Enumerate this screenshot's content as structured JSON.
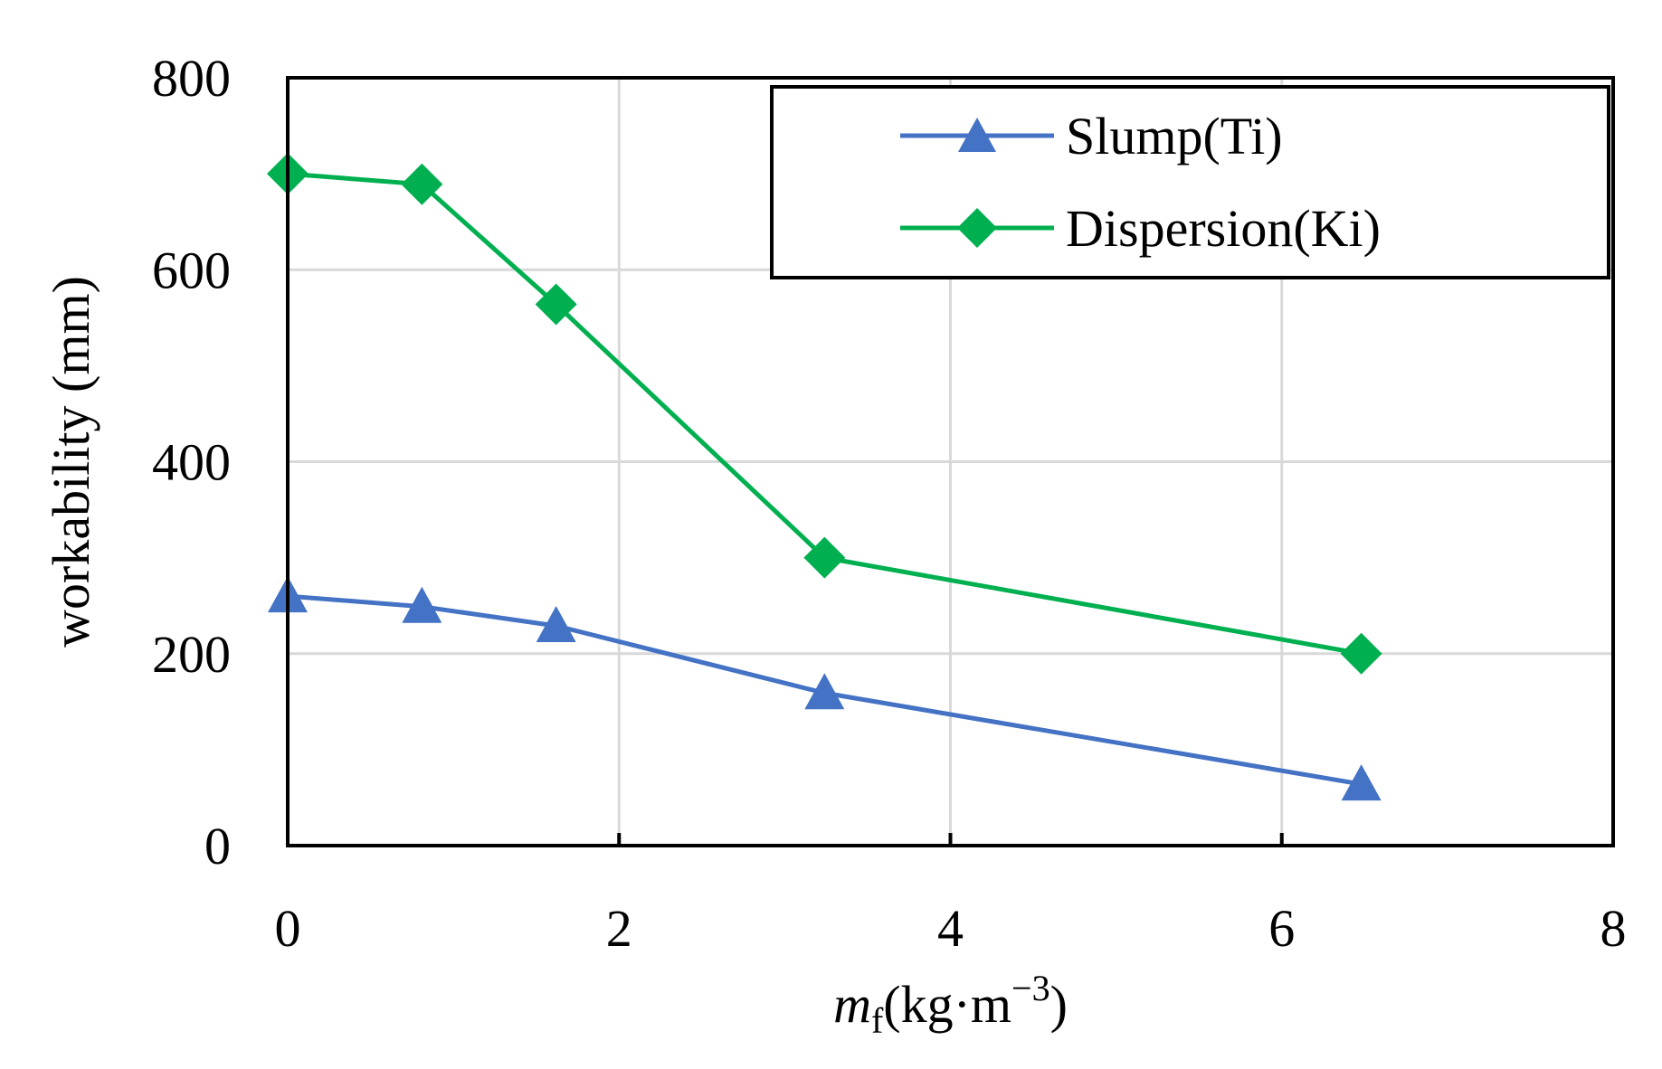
{
  "chart_data": {
    "type": "line",
    "title": "",
    "xlabel": {
      "main": "m",
      "sub": "f",
      "units": "(kg·m",
      "sup": "−3",
      "close": ")"
    },
    "ylabel": "workability (mm)",
    "xlim": [
      0,
      8
    ],
    "ylim": [
      0,
      800
    ],
    "xticks": [
      "0",
      "2",
      "4",
      "6",
      "8"
    ],
    "yticks": [
      "0",
      "200",
      "400",
      "600",
      "800"
    ],
    "grid": true,
    "legend_position": "top-right",
    "series": [
      {
        "name": "Slump(Ti)",
        "color": "#4472C4",
        "marker": "triangle",
        "x": [
          0,
          0.81,
          1.62,
          3.24,
          6.48
        ],
        "y": [
          260,
          249,
          229,
          159,
          64
        ]
      },
      {
        "name": "Dispersion(Ki)",
        "color": "#00B050",
        "marker": "diamond",
        "x": [
          0,
          0.81,
          1.62,
          3.24,
          6.48
        ],
        "y": [
          700,
          689,
          564,
          300,
          200
        ]
      }
    ]
  }
}
